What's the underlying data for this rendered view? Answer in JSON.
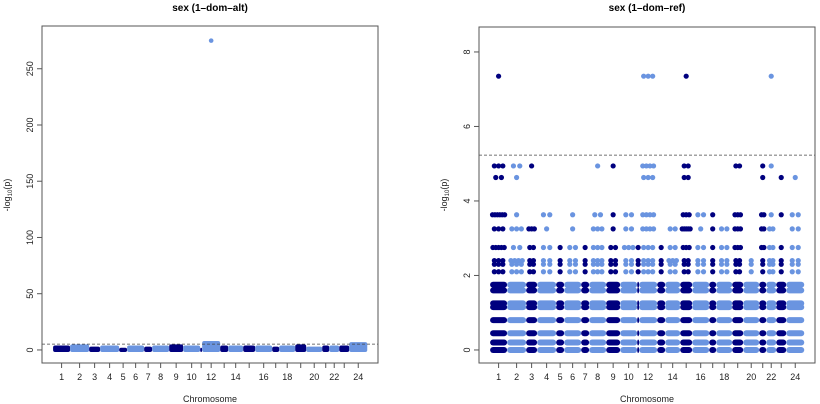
{
  "colors": {
    "odd": "#00007f",
    "even": "#6a94e0",
    "threshold": "#444444"
  },
  "chart_data": [
    {
      "type": "scatter",
      "subtype": "manhattan",
      "title": "sex (1–dom–alt)",
      "xlabel": "Chromosome",
      "ylabel": "-log10(p)",
      "ylim": [
        -11.6,
        288
      ],
      "yticks": [
        0,
        50,
        100,
        150,
        200,
        250
      ],
      "threshold": 5.2,
      "chromosome_sizes": [
        17,
        19,
        11,
        19,
        8,
        17,
        8,
        17,
        14,
        17,
        2,
        18,
        8,
        15,
        12,
        17,
        7,
        16,
        11,
        16,
        7,
        10,
        10,
        18
      ],
      "x_tick_labels": [
        "1",
        "2",
        "3",
        "4",
        "5",
        "6",
        "7",
        "8",
        "9",
        "10",
        "",
        "12",
        "",
        "14",
        "",
        "16",
        "",
        "18",
        "",
        "20",
        "",
        "22",
        "",
        "24"
      ],
      "chromosome_max": [
        4,
        5,
        3,
        4,
        2,
        4,
        3,
        4,
        5,
        4,
        2,
        8,
        4,
        4,
        4,
        4,
        3,
        4,
        5,
        3,
        4,
        4,
        4,
        7
      ],
      "outliers": [
        {
          "chr": 12,
          "pos": 0.5,
          "y": 275
        }
      ]
    },
    {
      "type": "scatter",
      "subtype": "manhattan",
      "title": "sex (1–dom–ref)",
      "xlabel": "Chromosome",
      "ylabel": "-log10(p)",
      "ylim": [
        -0.35,
        8.67
      ],
      "yticks": [
        0,
        2,
        4,
        6,
        8
      ],
      "threshold": 5.23,
      "chromosome_sizes": [
        17,
        19,
        11,
        19,
        8,
        17,
        8,
        17,
        14,
        17,
        2,
        18,
        8,
        15,
        12,
        17,
        7,
        16,
        11,
        16,
        7,
        10,
        10,
        18
      ],
      "x_tick_labels": [
        "1",
        "2",
        "3",
        "4",
        "5",
        "6",
        "7",
        "8",
        "9",
        "10",
        "",
        "12",
        "",
        "14",
        "",
        "16",
        "",
        "18",
        "",
        "20",
        "",
        "22",
        "",
        "24"
      ],
      "dense_levels": [
        0,
        0.2,
        0.45,
        0.8,
        1.15,
        1.25,
        1.6,
        1.75
      ],
      "sparse_levels": [
        {
          "y": 7.35,
          "chr": [
            1,
            12,
            12,
            12,
            15,
            22
          ]
        },
        {
          "y": 4.94,
          "chr": [
            1,
            1,
            1,
            2,
            2,
            3,
            8,
            9,
            12,
            12,
            12,
            12,
            15,
            15,
            19,
            19,
            21,
            22
          ]
        },
        {
          "y": 4.63,
          "chr": [
            1,
            1,
            2,
            12,
            12,
            12,
            15,
            15,
            21,
            23,
            24
          ]
        },
        {
          "y": 3.63,
          "chr": [
            1,
            1,
            1,
            1,
            1,
            1,
            2,
            4,
            4,
            6,
            8,
            8,
            9,
            10,
            10,
            12,
            12,
            12,
            12,
            15,
            15,
            15,
            16,
            16,
            17,
            19,
            19,
            19,
            21,
            21,
            22,
            23,
            24,
            24
          ]
        },
        {
          "y": 3.25,
          "chr": [
            1,
            1,
            1,
            2,
            2,
            2,
            3,
            3,
            3,
            4,
            6,
            8,
            8,
            8,
            9,
            10,
            10,
            12,
            12,
            12,
            12,
            14,
            14,
            15,
            15,
            15,
            15,
            15,
            16,
            17,
            18,
            18,
            19,
            19,
            19,
            21,
            21,
            22,
            22,
            24,
            24
          ]
        },
        {
          "y": 2.75,
          "chr": [
            1,
            1,
            1,
            1,
            1,
            2,
            2,
            3,
            3,
            4,
            4,
            5,
            6,
            6,
            7,
            8,
            8,
            8,
            9,
            9,
            10,
            10,
            10,
            11,
            12,
            12,
            12,
            13,
            14,
            14,
            15,
            15,
            15,
            16,
            16,
            17,
            18,
            18,
            19,
            19,
            19,
            21,
            21,
            22,
            22,
            23,
            24,
            24
          ]
        },
        {
          "y": 2.4,
          "chr": [
            1,
            1,
            1,
            2,
            2,
            2,
            2,
            3,
            3,
            4,
            4,
            5,
            6,
            6,
            7,
            8,
            8,
            8,
            9,
            9,
            10,
            10,
            11,
            12,
            12,
            12,
            13,
            14,
            14,
            14,
            15,
            15,
            16,
            16,
            17,
            18,
            18,
            19,
            19,
            20,
            21,
            22,
            22,
            23,
            24,
            24
          ]
        },
        {
          "y": 2.3,
          "chr": [
            1,
            1,
            1,
            2,
            2,
            2,
            3,
            3,
            4,
            4,
            5,
            6,
            6,
            7,
            8,
            8,
            8,
            9,
            9,
            10,
            10,
            11,
            12,
            12,
            12,
            13,
            14,
            14,
            15,
            15,
            16,
            16,
            17,
            18,
            18,
            19,
            19,
            20,
            21,
            22,
            22,
            23,
            24,
            24
          ]
        },
        {
          "y": 2.1,
          "chr": [
            1,
            1,
            1,
            2,
            2,
            2,
            3,
            3,
            4,
            4,
            5,
            6,
            6,
            7,
            8,
            8,
            8,
            9,
            9,
            10,
            10,
            11,
            12,
            12,
            12,
            13,
            14,
            14,
            15,
            15,
            16,
            16,
            17,
            18,
            18,
            19,
            19,
            20,
            21,
            22,
            22,
            23,
            24,
            24
          ]
        }
      ]
    }
  ]
}
